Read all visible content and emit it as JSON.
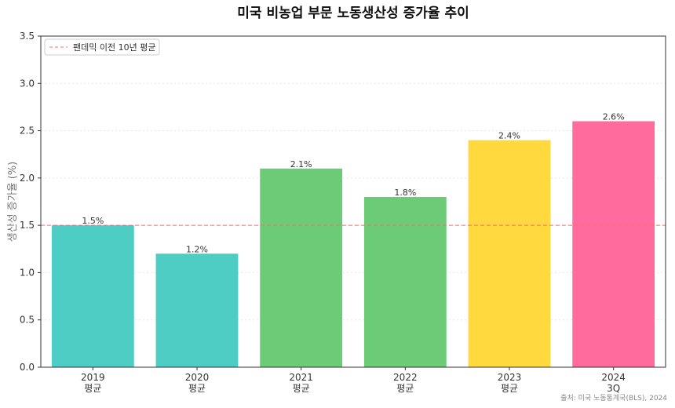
{
  "chart_data": {
    "type": "bar",
    "title": "미국 비농업 부문 노동생산성 증가율 추이",
    "ylabel": "생산성 증가율 (%)",
    "xlabel": "",
    "ylim": [
      0,
      3.5
    ],
    "yticks": [
      "0.0",
      "0.5",
      "1.0",
      "1.5",
      "2.0",
      "2.5",
      "3.0",
      "3.5"
    ],
    "categories": [
      {
        "line1": "2019",
        "line2": "평균"
      },
      {
        "line1": "2020",
        "line2": "평균"
      },
      {
        "line1": "2021",
        "line2": "평균"
      },
      {
        "line1": "2022",
        "line2": "평균"
      },
      {
        "line1": "2023",
        "line2": "평균"
      },
      {
        "line1": "2024",
        "line2": "3Q"
      }
    ],
    "values": [
      1.5,
      1.2,
      2.1,
      1.8,
      2.4,
      2.6
    ],
    "value_labels": [
      "1.5%",
      "1.2%",
      "2.1%",
      "1.8%",
      "2.4%",
      "2.6%"
    ],
    "colors": [
      "#4ECDC4",
      "#4ECDC4",
      "#6BCB77",
      "#6BCB77",
      "#FFD93D",
      "#FF6B9D"
    ],
    "reference_line": {
      "value": 1.5,
      "label": "팬데믹 이전 10년 평균",
      "color": "#FF6B6B"
    },
    "legend_position": "top-left",
    "grid": true,
    "source": "출처: 미국 노동통계국(BLS), 2024"
  }
}
